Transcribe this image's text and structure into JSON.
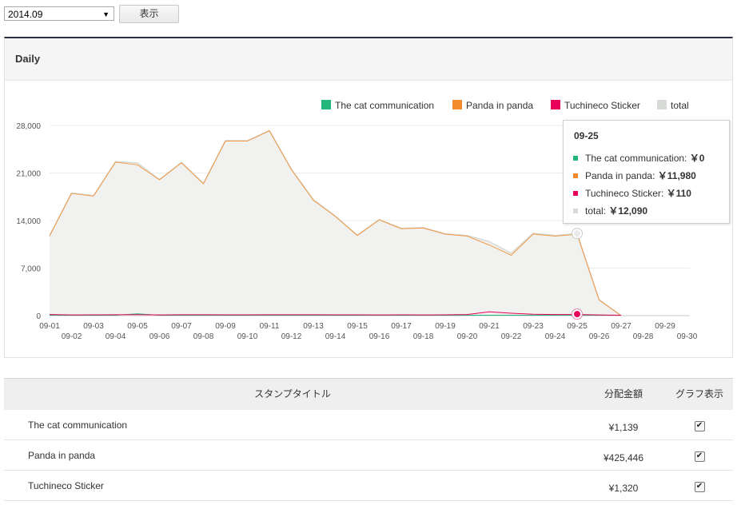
{
  "controls": {
    "month": "2014.09",
    "show_button": "表示"
  },
  "panel": {
    "title": "Daily"
  },
  "colors": {
    "cat": "#21b77a",
    "panda": "#f38a2c",
    "tuchineco": "#e8005a",
    "total": "#d6dbd6"
  },
  "chart_data": {
    "type": "area",
    "y_ticks": [
      "28,000",
      "21,000",
      "14,000",
      "7,000",
      "0"
    ],
    "ylim": [
      0,
      28000
    ],
    "x_ticks_top": [
      "09-01",
      "09-03",
      "09-05",
      "09-07",
      "09-09",
      "09-11",
      "09-13",
      "09-15",
      "09-17",
      "09-19",
      "09-21",
      "09-23",
      "09-25",
      "09-27",
      "09-29"
    ],
    "x_ticks_bottom": [
      "09-02",
      "09-04",
      "09-06",
      "09-08",
      "09-10",
      "09-12",
      "09-14",
      "09-16",
      "09-18",
      "09-20",
      "09-22",
      "09-24",
      "09-26",
      "09-28",
      "09-30"
    ],
    "x": [
      "09-01",
      "09-02",
      "09-03",
      "09-04",
      "09-05",
      "09-06",
      "09-07",
      "09-08",
      "09-09",
      "09-10",
      "09-11",
      "09-12",
      "09-13",
      "09-14",
      "09-15",
      "09-16",
      "09-17",
      "09-18",
      "09-19",
      "09-20",
      "09-21",
      "09-22",
      "09-23",
      "09-24",
      "09-25",
      "09-26",
      "09-27"
    ],
    "legend_position": "top-right",
    "series": [
      {
        "name": "The cat communication",
        "color": "#21b77a",
        "values": [
          0,
          0,
          0,
          0,
          200,
          0,
          0,
          0,
          0,
          0,
          0,
          0,
          0,
          0,
          0,
          0,
          0,
          0,
          0,
          0,
          0,
          0,
          0,
          0,
          0,
          0,
          0
        ]
      },
      {
        "name": "Panda in panda",
        "color": "#f38a2c",
        "values": [
          11700,
          18000,
          17600,
          22600,
          22200,
          20000,
          22500,
          19400,
          25700,
          25700,
          27200,
          21500,
          17000,
          14600,
          11800,
          14100,
          12800,
          12900,
          12000,
          11700,
          10400,
          8900,
          12000,
          11700,
          11980,
          2300,
          0
        ]
      },
      {
        "name": "Tuchineco Sticker",
        "color": "#e8005a",
        "values": [
          100,
          50,
          60,
          70,
          80,
          50,
          70,
          80,
          60,
          60,
          70,
          70,
          80,
          60,
          60,
          50,
          60,
          50,
          60,
          100,
          500,
          300,
          150,
          100,
          110,
          40,
          0
        ]
      },
      {
        "name": "total",
        "color": "#d6dbd6",
        "values": [
          11800,
          18050,
          17660,
          22670,
          22480,
          20050,
          22570,
          19480,
          25760,
          25760,
          27270,
          21570,
          17080,
          14660,
          11860,
          14150,
          12860,
          12950,
          12060,
          11800,
          10900,
          9200,
          12150,
          11800,
          12090,
          2340,
          0
        ]
      }
    ]
  },
  "tooltip": {
    "date": "09-25",
    "rows": [
      {
        "label": "The cat communication:",
        "value": "￥0",
        "color": "#21b77a"
      },
      {
        "label": "Panda in panda:",
        "value": "￥11,980",
        "color": "#f38a2c"
      },
      {
        "label": "Tuchineco Sticker:",
        "value": "￥110",
        "color": "#e8005a"
      },
      {
        "label": "total:",
        "value": "￥12,090",
        "color": "#d6dbd6"
      }
    ]
  },
  "table": {
    "headers": {
      "title": "スタンプタイトル",
      "amount": "分配金額",
      "graph": "グラフ表示"
    },
    "rows": [
      {
        "title": "The cat communication",
        "amount": "¥1,139",
        "checked": true
      },
      {
        "title": "Panda in panda",
        "amount": "¥425,446",
        "checked": true
      },
      {
        "title": "Tuchineco Sticker",
        "amount": "¥1,320",
        "checked": true
      }
    ]
  }
}
